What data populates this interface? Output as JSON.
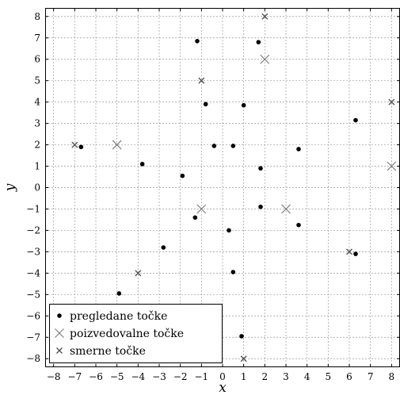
{
  "chart_data": {
    "type": "scatter",
    "xlabel": "x",
    "ylabel": "y",
    "xlim": [
      -8.4,
      8.4
    ],
    "ylim": [
      -8.4,
      8.4
    ],
    "xticks": [
      -8,
      -7,
      -6,
      -5,
      -4,
      -3,
      -2,
      -1,
      0,
      1,
      2,
      3,
      4,
      5,
      6,
      7,
      8
    ],
    "yticks": [
      -8,
      -7,
      -6,
      -5,
      -4,
      -3,
      -2,
      -1,
      0,
      1,
      2,
      3,
      4,
      5,
      6,
      7,
      8
    ],
    "xtick_labels": [
      "−8",
      "−7",
      "−6",
      "−5",
      "−4",
      "−3",
      "−2",
      "−1",
      "0",
      "1",
      "2",
      "3",
      "4",
      "5",
      "6",
      "7",
      "8"
    ],
    "ytick_labels": [
      "−8",
      "−7",
      "−6",
      "−5",
      "−4",
      "−3",
      "−2",
      "−1",
      "0",
      "1",
      "2",
      "3",
      "4",
      "5",
      "6",
      "7",
      "8"
    ],
    "grid": true,
    "legend_position": "bottom-left",
    "series": [
      {
        "name": "pregledane točke",
        "marker": "dot",
        "color": "#000000",
        "points": [
          [
            -1.2,
            6.85
          ],
          [
            1.7,
            6.8
          ],
          [
            -0.8,
            3.9
          ],
          [
            1.0,
            3.85
          ],
          [
            -0.4,
            1.95
          ],
          [
            0.5,
            1.95
          ],
          [
            1.8,
            0.9
          ],
          [
            3.6,
            1.8
          ],
          [
            -6.7,
            1.9
          ],
          [
            -3.8,
            1.1
          ],
          [
            -1.9,
            0.55
          ],
          [
            6.3,
            3.15
          ],
          [
            -1.3,
            -1.4
          ],
          [
            1.8,
            -0.9
          ],
          [
            0.3,
            -2.0
          ],
          [
            3.6,
            -1.75
          ],
          [
            -2.8,
            -2.8
          ],
          [
            0.5,
            -3.95
          ],
          [
            -4.9,
            -4.95
          ],
          [
            6.3,
            -3.1
          ],
          [
            0.9,
            -6.95
          ]
        ]
      },
      {
        "name": "poizvedovalne točke",
        "marker": "large-x",
        "color": "#777777",
        "points": [
          [
            2,
            6
          ],
          [
            -5,
            2
          ],
          [
            -1,
            -1
          ],
          [
            3,
            -1
          ],
          [
            8,
            1
          ]
        ]
      },
      {
        "name": "smerne točke",
        "marker": "small-x",
        "color": "#555555",
        "points": [
          [
            2,
            8
          ],
          [
            -1,
            5
          ],
          [
            8,
            4
          ],
          [
            -7,
            2
          ],
          [
            -4,
            -4
          ],
          [
            6,
            -3
          ],
          [
            1,
            -8
          ]
        ]
      }
    ]
  }
}
